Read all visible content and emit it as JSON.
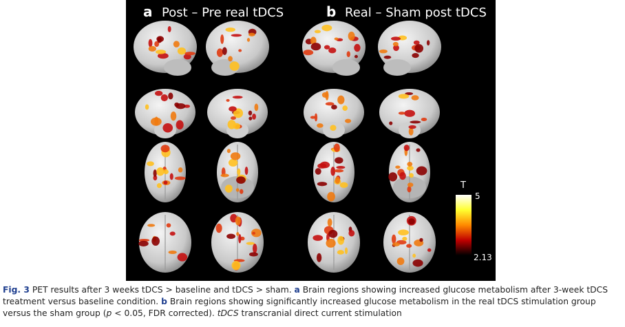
{
  "panels": [
    {
      "letter": "a",
      "title": "Post – Pre real tDCS"
    },
    {
      "letter": "b",
      "title": "Real – Sham post tDCS"
    }
  ],
  "colorbar": {
    "label": "T",
    "max": 5,
    "min": 2.13
  },
  "caption": {
    "segments": [
      "Fig. 3",
      " PET results after 3 weeks tDCS > baseline and tDCS > sham. ",
      "a",
      " Brain regions showing increased glucose metabolism after 3-week tDCS treatment versus baseline condition. ",
      "b",
      " Brain regions showing significantly increased glucose metabolism in the real tDCS stimulation group versus the sham group (",
      "p",
      " < 0.05, FDR corrected). ",
      "tDCS",
      " transcranial direct current stimulation"
    ]
  }
}
